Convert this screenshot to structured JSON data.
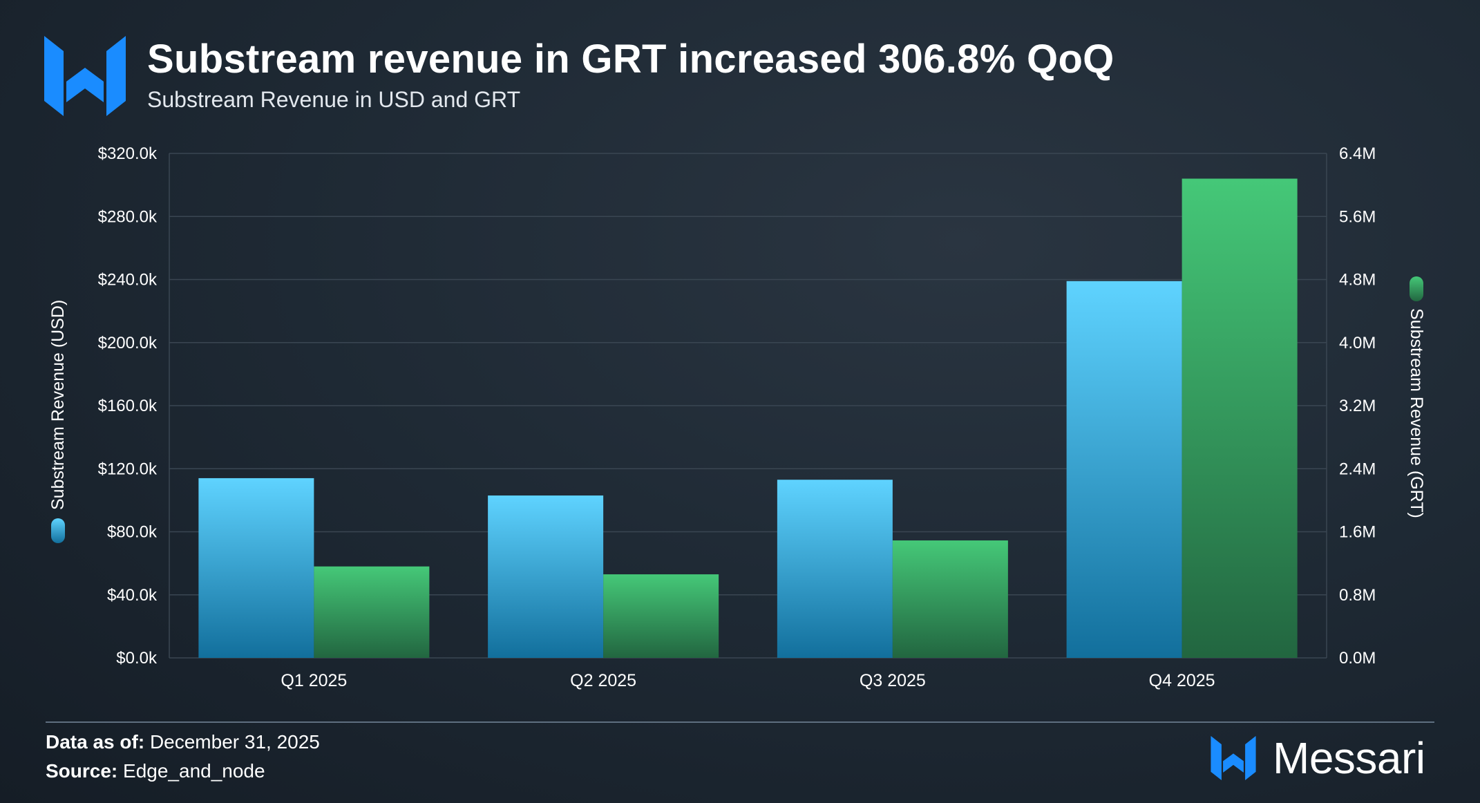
{
  "header": {
    "title": "Substream revenue in GRT increased 306.8% QoQ",
    "subtitle": "Substream Revenue in USD and GRT"
  },
  "colors": {
    "usd_top": "#5fd3ff",
    "usd_bottom": "#126f9c",
    "grt_top": "#45c878",
    "grt_bottom": "#226640",
    "brand_blue": "#1a8cff",
    "grid": "#3a4652"
  },
  "chart_data": {
    "type": "bar",
    "title": "Substream revenue in GRT increased 306.8% QoQ",
    "subtitle": "Substream Revenue in USD and GRT",
    "categories": [
      "Q1 2025",
      "Q2 2025",
      "Q3 2025",
      "Q4 2025"
    ],
    "series": [
      {
        "name": "Substream Revenue (USD)",
        "axis": "left",
        "values": [
          114000,
          103000,
          113000,
          239000
        ]
      },
      {
        "name": "Substream Revenue (GRT)",
        "axis": "right",
        "values": [
          1160000,
          1060000,
          1490000,
          6080000
        ]
      }
    ],
    "ylabel_left": "Substream Revenue (USD)",
    "ylabel_right": "Substream Revenue (GRT)",
    "ylim_left": [
      0,
      320000
    ],
    "ylim_right": [
      0,
      6400000
    ],
    "yticks_left": [
      "$0.0k",
      "$40.0k",
      "$80.0k",
      "$120.0k",
      "$160.0k",
      "$200.0k",
      "$240.0k",
      "$280.0k",
      "$320.0k"
    ],
    "yticks_right": [
      "0.0M",
      "0.8M",
      "1.6M",
      "2.4M",
      "3.2M",
      "4.0M",
      "4.8M",
      "5.6M",
      "6.4M"
    ],
    "grid": true
  },
  "footer": {
    "data_as_of_label": "Data as of:",
    "data_as_of_value": "December 31, 2025",
    "source_label": "Source:",
    "source_value": "Edge_and_node",
    "brand": "Messari"
  }
}
